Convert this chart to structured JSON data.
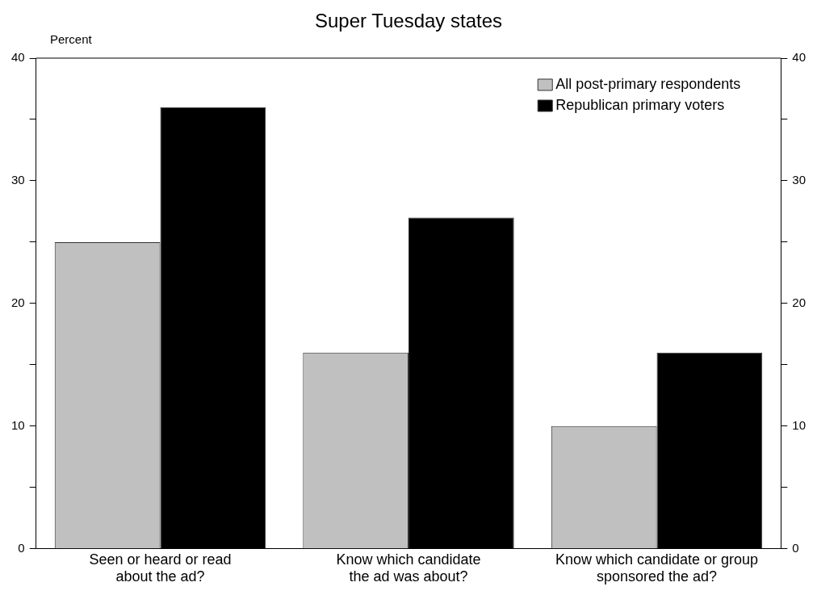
{
  "chart_data": {
    "type": "bar",
    "subtitle": "Super Tuesday states",
    "ylabel": "Percent",
    "categories": [
      "Seen or heard or read\nabout the ad?",
      "Know which candidate\nthe ad was about?",
      "Know which candidate or group\nsponsored the ad?"
    ],
    "series": [
      {
        "name": "All post-primary respondents",
        "color": "#c0c0c0",
        "values": [
          25,
          16,
          10
        ]
      },
      {
        "name": "Republican primary voters",
        "color": "#000000",
        "values": [
          36,
          27,
          16
        ]
      }
    ],
    "ylim": [
      0,
      40
    ],
    "yticks": [
      0,
      {
        "value": 5,
        "label": null
      },
      10,
      {
        "value": 15,
        "label": null
      },
      20,
      {
        "value": 25,
        "label": null
      },
      30,
      {
        "value": 35,
        "label": null
      },
      40
    ],
    "y2lim": [
      0,
      40
    ],
    "y2ticks": [
      0,
      {
        "value": 5,
        "label": null
      },
      10,
      {
        "value": 15,
        "label": null
      },
      20,
      {
        "value": 25,
        "label": null
      },
      30,
      {
        "value": 35,
        "label": null
      },
      40
    ],
    "grid": false,
    "legend": "top right"
  }
}
